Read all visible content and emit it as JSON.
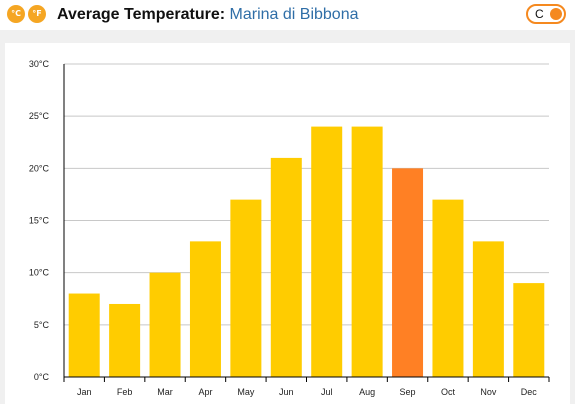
{
  "header": {
    "unit_celsius_label": "°C",
    "unit_fahrenheit_label": "°F",
    "title": "Average Temperature:",
    "location": "Marina di Bibbona",
    "toggle_label": "C"
  },
  "colors": {
    "bar": "#ffcc00",
    "bar_highlight": "#ff8024",
    "badge": "#f5a623",
    "toggle_accent": "#f5891f",
    "location_link": "#2f6ea7"
  },
  "chart_data": {
    "type": "bar",
    "categories": [
      "Jan",
      "Feb",
      "Mar",
      "Apr",
      "May",
      "Jun",
      "Jul",
      "Aug",
      "Sep",
      "Oct",
      "Nov",
      "Dec"
    ],
    "values": [
      8,
      7,
      10,
      13,
      17,
      21,
      24,
      24,
      20,
      17,
      13,
      9
    ],
    "highlight_category": "Sep",
    "unit": "°C",
    "ylim": [
      0,
      30
    ],
    "yticks": [
      0,
      5,
      10,
      15,
      20,
      25,
      30
    ],
    "ytick_labels": [
      "0°C",
      "5°C",
      "10°C",
      "15°C",
      "20°C",
      "25°C",
      "30°C"
    ],
    "grid": true,
    "legend": "none"
  }
}
